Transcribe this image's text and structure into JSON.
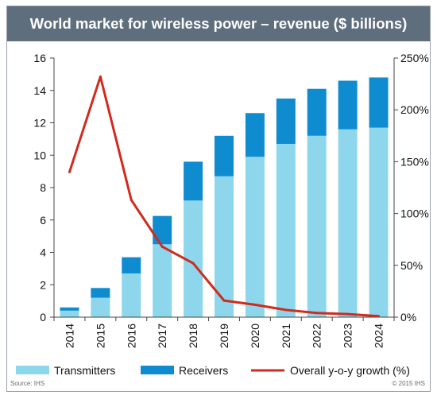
{
  "chart_data": {
    "type": "bar",
    "stacked": true,
    "title": "World market for wireless power – revenue ($ billions)",
    "categories": [
      "2014",
      "2015",
      "2016",
      "2017",
      "2018",
      "2019",
      "2020",
      "2021",
      "2022",
      "2023",
      "2024"
    ],
    "series": [
      {
        "name": "Transmitters",
        "type": "bar",
        "axis": "left",
        "color": "#8ed6ec",
        "values": [
          0.4,
          1.2,
          2.7,
          4.5,
          7.2,
          8.7,
          9.9,
          10.7,
          11.2,
          11.6,
          11.7
        ]
      },
      {
        "name": "Receivers",
        "type": "bar",
        "axis": "left",
        "color": "#0f8ccf",
        "values": [
          0.2,
          0.6,
          1.0,
          1.75,
          2.4,
          2.5,
          2.7,
          2.8,
          2.9,
          3.0,
          3.1
        ]
      },
      {
        "name": "Overall y-o-y growth (%)",
        "type": "line",
        "axis": "right",
        "color": "#d02b1d",
        "values": [
          140,
          232,
          113,
          68,
          52,
          16,
          12,
          7,
          4,
          3,
          1
        ]
      }
    ],
    "left_axis": {
      "min": 0,
      "max": 16,
      "ticks": [
        "0",
        "2",
        "4",
        "6",
        "8",
        "10",
        "12",
        "14",
        "16"
      ]
    },
    "right_axis": {
      "min": 0,
      "max": 250,
      "ticks": [
        "0%",
        "50%",
        "100%",
        "150%",
        "200%",
        "250%"
      ]
    },
    "grid": false,
    "legend_position": "bottom",
    "source": "Source: IHS",
    "copyright": "© 2015 IHS"
  }
}
